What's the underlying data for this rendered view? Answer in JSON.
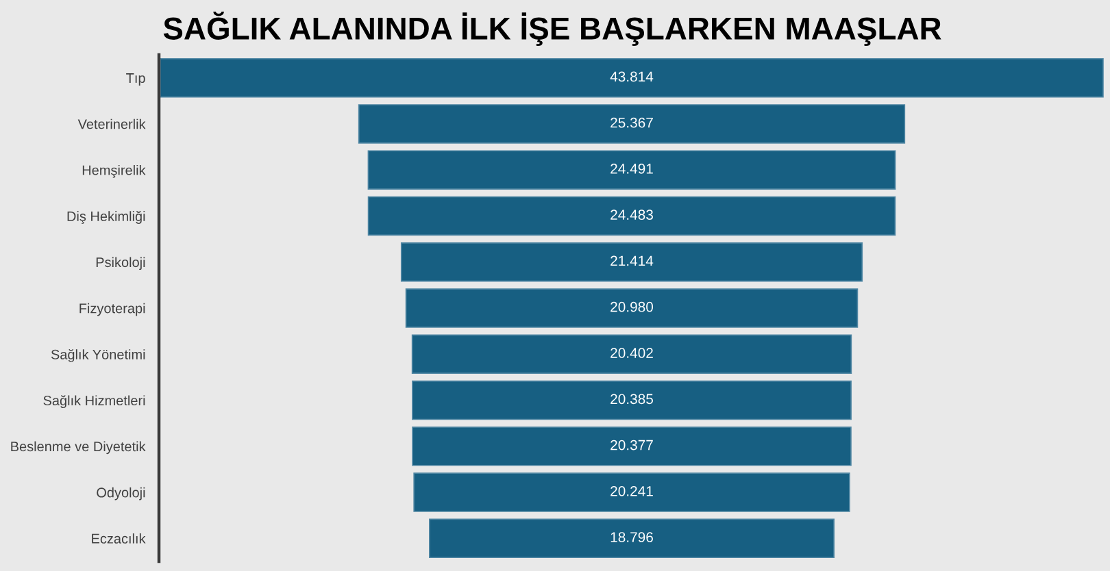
{
  "chart_data": {
    "type": "other",
    "title": "SAĞLIK ALANINDA İLK İŞE BAŞLARKEN MAAŞLAR",
    "categories": [
      "Tıp",
      "Veterinerlik",
      "Hemşirelik",
      "Diş Hekimliği",
      "Psikoloji",
      "Fizyoterapi",
      "Sağlık Yönetimi",
      "Sağlık Hizmetleri",
      "Beslenme ve Diyetetik",
      "Odyoloji",
      "Eczacılık"
    ],
    "values": [
      43814,
      25367,
      24491,
      24483,
      21414,
      20980,
      20402,
      20385,
      20377,
      20241,
      18796
    ],
    "value_labels": [
      "43.814",
      "25.367",
      "24.491",
      "24.483",
      "21.414",
      "20.980",
      "20.402",
      "20.385",
      "20.377",
      "20.241",
      "18.796"
    ],
    "color": "#175f82"
  }
}
